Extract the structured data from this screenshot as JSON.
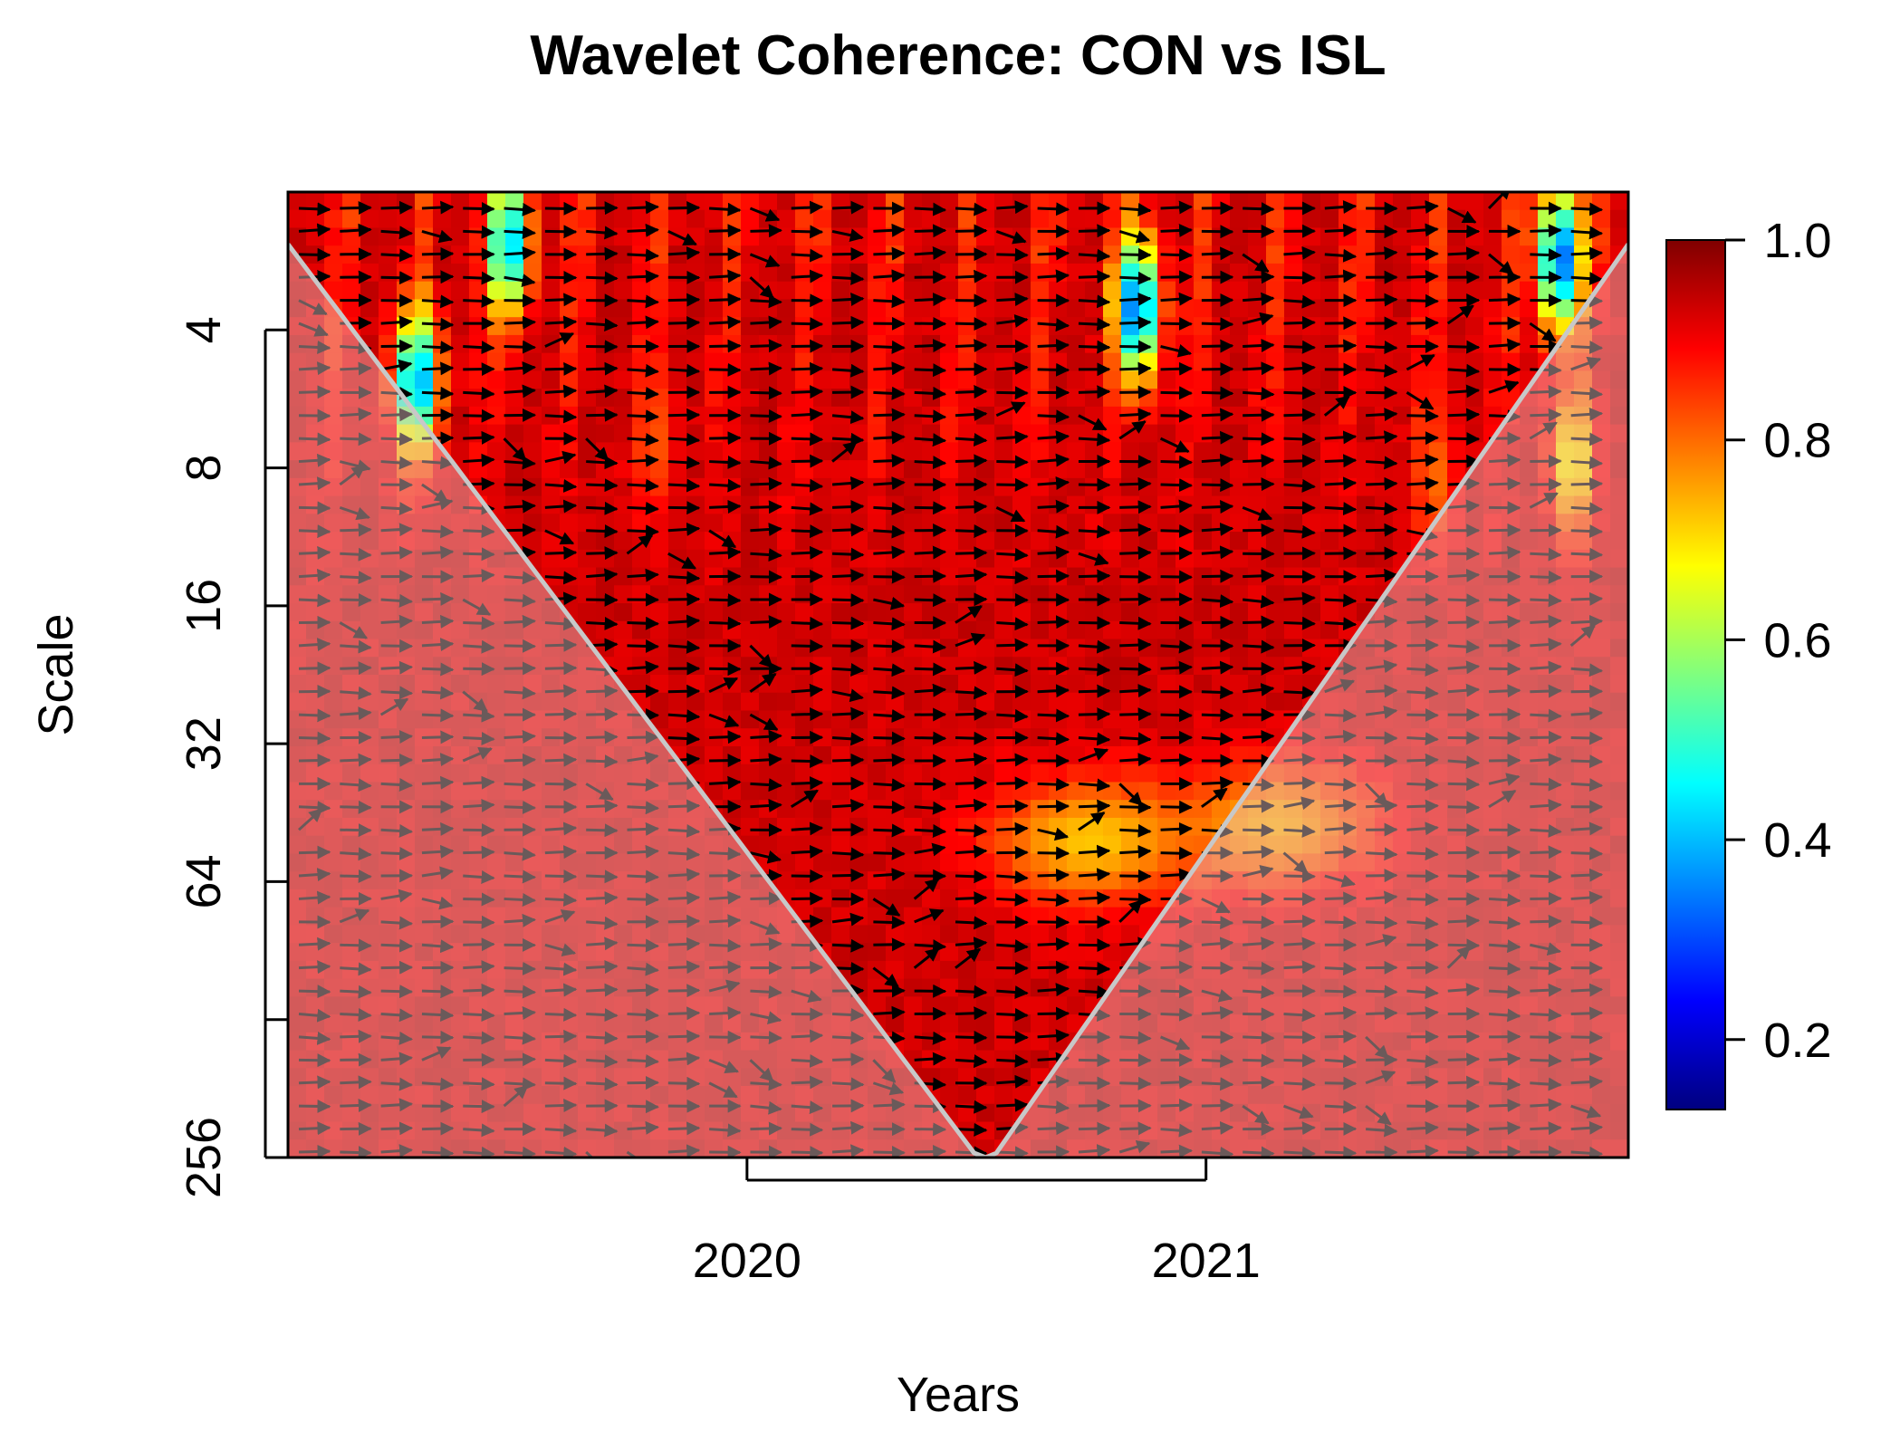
{
  "chart_data": {
    "type": "heatmap",
    "title": "Wavelet Coherence: CON vs ISL",
    "xlabel": "Years",
    "ylabel": "Scale",
    "x_ticks": [
      "2020",
      "2021"
    ],
    "x_tick_values": [
      2020.0,
      2021.0
    ],
    "xlim": [
      2019.0,
      2021.92
    ],
    "y_ticks": [
      "4",
      "8",
      "16",
      "32",
      "64",
      "256"
    ],
    "y_tick_values": [
      4,
      8,
      16,
      32,
      64,
      256
    ],
    "y_scale": "log2",
    "y_reversed": true,
    "ylim": [
      2,
      256
    ],
    "colorbar": {
      "ticks": [
        "1.0",
        "0.8",
        "0.6",
        "0.4",
        "0.2"
      ],
      "tick_values": [
        1.0,
        0.8,
        0.6,
        0.4,
        0.2
      ],
      "range": [
        0.13,
        1.0
      ],
      "colors": [
        "#00007f",
        "#0000ff",
        "#007fff",
        "#00ffff",
        "#7fff7f",
        "#ffff00",
        "#ff7f00",
        "#ff0000",
        "#7f0000"
      ]
    },
    "background_coherence": 0.95,
    "regions": [
      {
        "label": "low-coherence",
        "x": 2020.75,
        "scale": 52,
        "value": 0.72
      },
      {
        "label": "low-coherence",
        "x": 2021.15,
        "scale": 48,
        "value": 0.74
      },
      {
        "label": "low-coherence",
        "x": 2019.28,
        "scale": 5.2,
        "value": 0.35
      },
      {
        "label": "low-coherence",
        "x": 2020.85,
        "scale": 3.6,
        "value": 0.3
      },
      {
        "label": "low-coherence",
        "x": 2021.8,
        "scale": 7.8,
        "value": 0.65
      },
      {
        "label": "low-coherence",
        "x": 2019.48,
        "scale": 2.6,
        "value": 0.4
      },
      {
        "label": "low-coherence",
        "x": 2021.77,
        "scale": 2.8,
        "value": 0.3
      },
      {
        "label": "low-coherence",
        "x": 2019.8,
        "scale": 7.0,
        "value": 0.82
      },
      {
        "label": "low-coherence",
        "x": 2021.5,
        "scale": 8.5,
        "value": 0.8
      }
    ],
    "dominant_phase_arrow": "right"
  }
}
